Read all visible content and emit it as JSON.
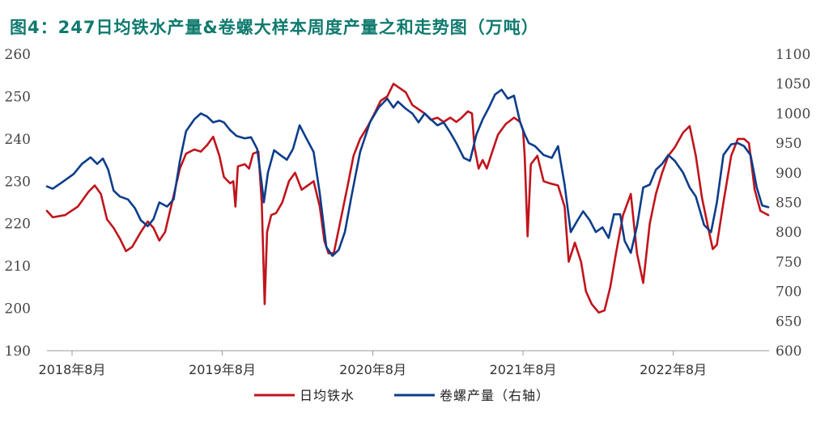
{
  "title": "图4：247日均铁水产量&卷螺大样本周度产量之和走势图（万吨）",
  "colors": {
    "series1": "#c0141c",
    "series2": "#0c3d8a",
    "title": "#0f7a6e",
    "axis": "#999999"
  },
  "chart_data": {
    "type": "line",
    "title": "图4：247日均铁水产量&卷螺大样本周度产量之和走势图（万吨）",
    "x_range": [
      "2018-06-01",
      "2023-03-22"
    ],
    "x_tick_labels": [
      {
        "date": "2018-08-01",
        "label": "2018年8月"
      },
      {
        "date": "2019-08-01",
        "label": "2019年8月"
      },
      {
        "date": "2020-08-01",
        "label": "2020年8月"
      },
      {
        "date": "2021-08-01",
        "label": "2021年8月"
      },
      {
        "date": "2022-08-01",
        "label": "2022年8月"
      }
    ],
    "y_left": {
      "ylim": [
        190,
        260
      ],
      "ticks": [
        190,
        200,
        210,
        220,
        230,
        240,
        250,
        260
      ]
    },
    "y_right": {
      "ylim": [
        600,
        1100
      ],
      "ticks": [
        600,
        650,
        700,
        750,
        800,
        850,
        900,
        950,
        1000,
        1050,
        1100
      ]
    },
    "grid": false,
    "legend_position": "bottom",
    "series": [
      {
        "name": "日均铁水",
        "axis": "left",
        "color": "#c0141c",
        "points": [
          [
            "2018-06-01",
            223
          ],
          [
            "2018-06-15",
            221.5
          ],
          [
            "2018-07-15",
            222
          ],
          [
            "2018-08-15",
            224
          ],
          [
            "2018-09-10",
            227.5
          ],
          [
            "2018-09-25",
            229
          ],
          [
            "2018-10-10",
            227
          ],
          [
            "2018-10-25",
            221
          ],
          [
            "2018-11-10",
            219
          ],
          [
            "2018-11-25",
            216.5
          ],
          [
            "2018-12-10",
            213.5
          ],
          [
            "2018-12-25",
            214.5
          ],
          [
            "2019-01-15",
            218
          ],
          [
            "2019-02-01",
            220.5
          ],
          [
            "2019-02-15",
            219
          ],
          [
            "2019-03-01",
            216
          ],
          [
            "2019-03-15",
            218
          ],
          [
            "2019-04-01",
            225
          ],
          [
            "2019-04-20",
            233
          ],
          [
            "2019-05-05",
            236.5
          ],
          [
            "2019-05-25",
            237.5
          ],
          [
            "2019-06-10",
            237
          ],
          [
            "2019-06-25",
            238.5
          ],
          [
            "2019-07-10",
            240.5
          ],
          [
            "2019-07-25",
            236
          ],
          [
            "2019-08-05",
            231
          ],
          [
            "2019-08-20",
            229.5
          ],
          [
            "2019-08-28",
            230
          ],
          [
            "2019-09-02",
            224
          ],
          [
            "2019-09-08",
            233.5
          ],
          [
            "2019-09-25",
            234
          ],
          [
            "2019-10-05",
            233
          ],
          [
            "2019-10-15",
            236.5
          ],
          [
            "2019-10-28",
            237
          ],
          [
            "2019-11-05",
            225
          ],
          [
            "2019-11-12",
            201
          ],
          [
            "2019-11-18",
            218
          ],
          [
            "2019-11-28",
            222
          ],
          [
            "2019-12-10",
            222.5
          ],
          [
            "2019-12-25",
            225
          ],
          [
            "2020-01-10",
            230
          ],
          [
            "2020-01-25",
            232
          ],
          [
            "2020-02-10",
            228
          ],
          [
            "2020-02-25",
            229
          ],
          [
            "2020-03-10",
            230
          ],
          [
            "2020-03-25",
            224
          ],
          [
            "2020-04-05",
            216
          ],
          [
            "2020-04-15",
            213
          ],
          [
            "2020-04-28",
            213
          ],
          [
            "2020-05-15",
            221
          ],
          [
            "2020-06-01",
            229
          ],
          [
            "2020-06-15",
            236
          ],
          [
            "2020-07-01",
            240
          ],
          [
            "2020-07-20",
            243
          ],
          [
            "2020-08-05",
            246
          ],
          [
            "2020-08-20",
            249
          ],
          [
            "2020-09-05",
            250
          ],
          [
            "2020-09-20",
            253
          ],
          [
            "2020-10-05",
            252
          ],
          [
            "2020-10-20",
            251
          ],
          [
            "2020-11-05",
            248
          ],
          [
            "2020-11-20",
            247
          ],
          [
            "2020-12-05",
            246
          ],
          [
            "2020-12-20",
            244.5
          ],
          [
            "2021-01-05",
            245
          ],
          [
            "2021-01-20",
            244
          ],
          [
            "2021-02-05",
            245
          ],
          [
            "2021-02-20",
            244
          ],
          [
            "2021-03-05",
            245
          ],
          [
            "2021-03-20",
            246.5
          ],
          [
            "2021-03-30",
            246
          ],
          [
            "2021-04-05",
            238
          ],
          [
            "2021-04-15",
            233
          ],
          [
            "2021-04-25",
            235
          ],
          [
            "2021-05-05",
            233
          ],
          [
            "2021-05-15",
            236
          ],
          [
            "2021-06-01",
            241
          ],
          [
            "2021-06-20",
            243.5
          ],
          [
            "2021-07-10",
            245
          ],
          [
            "2021-07-25",
            244
          ],
          [
            "2021-08-01",
            242
          ],
          [
            "2021-08-05",
            236
          ],
          [
            "2021-08-12",
            217
          ],
          [
            "2021-08-20",
            234
          ],
          [
            "2021-09-05",
            236
          ],
          [
            "2021-09-20",
            230
          ],
          [
            "2021-10-05",
            229.5
          ],
          [
            "2021-10-25",
            229
          ],
          [
            "2021-11-10",
            224
          ],
          [
            "2021-11-20",
            211
          ],
          [
            "2021-12-05",
            215.5
          ],
          [
            "2021-12-20",
            211
          ],
          [
            "2022-01-01",
            204
          ],
          [
            "2022-01-15",
            201
          ],
          [
            "2022-02-01",
            199
          ],
          [
            "2022-02-15",
            199.5
          ],
          [
            "2022-03-01",
            205
          ],
          [
            "2022-03-15",
            213
          ],
          [
            "2022-04-01",
            222
          ],
          [
            "2022-04-20",
            227
          ],
          [
            "2022-05-05",
            213
          ],
          [
            "2022-05-20",
            206
          ],
          [
            "2022-06-05",
            220
          ],
          [
            "2022-06-20",
            227
          ],
          [
            "2022-07-05",
            232
          ],
          [
            "2022-07-20",
            236
          ],
          [
            "2022-08-05",
            238
          ],
          [
            "2022-08-25",
            241.5
          ],
          [
            "2022-09-10",
            243
          ],
          [
            "2022-09-25",
            236
          ],
          [
            "2022-10-10",
            226
          ],
          [
            "2022-10-25",
            219
          ],
          [
            "2022-11-05",
            214
          ],
          [
            "2022-11-15",
            215
          ],
          [
            "2022-12-01",
            225
          ],
          [
            "2022-12-20",
            236
          ],
          [
            "2023-01-05",
            240
          ],
          [
            "2023-01-20",
            240
          ],
          [
            "2023-02-01",
            239
          ],
          [
            "2023-02-15",
            228
          ],
          [
            "2023-03-01",
            223
          ],
          [
            "2023-03-20",
            222
          ]
        ]
      },
      {
        "name": "卷螺产量（右轴）",
        "axis": "right",
        "color": "#0c3d8a",
        "points": [
          [
            "2018-06-01",
            877
          ],
          [
            "2018-06-15",
            873
          ],
          [
            "2018-07-10",
            885
          ],
          [
            "2018-08-05",
            898
          ],
          [
            "2018-08-25",
            915
          ],
          [
            "2018-09-15",
            926
          ],
          [
            "2018-10-01",
            915
          ],
          [
            "2018-10-15",
            924
          ],
          [
            "2018-10-28",
            905
          ],
          [
            "2018-11-10",
            870
          ],
          [
            "2018-11-25",
            860
          ],
          [
            "2018-12-15",
            855
          ],
          [
            "2019-01-01",
            840
          ],
          [
            "2019-01-15",
            820
          ],
          [
            "2019-02-01",
            810
          ],
          [
            "2019-02-15",
            822
          ],
          [
            "2019-03-01",
            850
          ],
          [
            "2019-03-20",
            843
          ],
          [
            "2019-04-05",
            855
          ],
          [
            "2019-04-20",
            920
          ],
          [
            "2019-05-05",
            970
          ],
          [
            "2019-05-25",
            990
          ],
          [
            "2019-06-10",
            1000
          ],
          [
            "2019-06-25",
            995
          ],
          [
            "2019-07-10",
            985
          ],
          [
            "2019-07-25",
            988
          ],
          [
            "2019-08-05",
            985
          ],
          [
            "2019-08-20",
            972
          ],
          [
            "2019-09-05",
            962
          ],
          [
            "2019-09-25",
            958
          ],
          [
            "2019-10-10",
            960
          ],
          [
            "2019-10-25",
            940
          ],
          [
            "2019-11-05",
            882
          ],
          [
            "2019-11-10",
            850
          ],
          [
            "2019-11-20",
            900
          ],
          [
            "2019-12-05",
            938
          ],
          [
            "2019-12-20",
            930
          ],
          [
            "2020-01-05",
            922
          ],
          [
            "2020-01-20",
            940
          ],
          [
            "2020-02-05",
            980
          ],
          [
            "2020-02-20",
            960
          ],
          [
            "2020-03-10",
            935
          ],
          [
            "2020-03-25",
            865
          ],
          [
            "2020-04-10",
            775
          ],
          [
            "2020-04-25",
            760
          ],
          [
            "2020-05-10",
            770
          ],
          [
            "2020-05-25",
            800
          ],
          [
            "2020-06-10",
            860
          ],
          [
            "2020-07-01",
            935
          ],
          [
            "2020-07-25",
            985
          ],
          [
            "2020-08-15",
            1010
          ],
          [
            "2020-09-05",
            1025
          ],
          [
            "2020-09-20",
            1010
          ],
          [
            "2020-10-01",
            1020
          ],
          [
            "2020-10-20",
            1008
          ],
          [
            "2020-11-05",
            1000
          ],
          [
            "2020-11-20",
            985
          ],
          [
            "2020-12-05",
            1000
          ],
          [
            "2020-12-20",
            990
          ],
          [
            "2021-01-05",
            980
          ],
          [
            "2021-01-20",
            985
          ],
          [
            "2021-02-05",
            968
          ],
          [
            "2021-02-20",
            950
          ],
          [
            "2021-03-10",
            925
          ],
          [
            "2021-03-25",
            920
          ],
          [
            "2021-04-10",
            965
          ],
          [
            "2021-04-25",
            990
          ],
          [
            "2021-05-10",
            1010
          ],
          [
            "2021-05-25",
            1032
          ],
          [
            "2021-06-10",
            1040
          ],
          [
            "2021-06-25",
            1025
          ],
          [
            "2021-07-10",
            1030
          ],
          [
            "2021-07-25",
            985
          ],
          [
            "2021-08-05",
            965
          ],
          [
            "2021-08-15",
            950
          ],
          [
            "2021-08-30",
            945
          ],
          [
            "2021-09-20",
            930
          ],
          [
            "2021-10-10",
            925
          ],
          [
            "2021-10-25",
            945
          ],
          [
            "2021-11-10",
            880
          ],
          [
            "2021-11-25",
            800
          ],
          [
            "2021-12-10",
            818
          ],
          [
            "2021-12-25",
            835
          ],
          [
            "2022-01-10",
            820
          ],
          [
            "2022-01-25",
            800
          ],
          [
            "2022-02-10",
            808
          ],
          [
            "2022-02-25",
            790
          ],
          [
            "2022-03-10",
            830
          ],
          [
            "2022-03-25",
            830
          ],
          [
            "2022-04-05",
            785
          ],
          [
            "2022-04-20",
            765
          ],
          [
            "2022-05-05",
            810
          ],
          [
            "2022-05-20",
            875
          ],
          [
            "2022-06-05",
            880
          ],
          [
            "2022-06-20",
            905
          ],
          [
            "2022-07-05",
            915
          ],
          [
            "2022-07-20",
            930
          ],
          [
            "2022-08-05",
            920
          ],
          [
            "2022-08-25",
            900
          ],
          [
            "2022-09-10",
            875
          ],
          [
            "2022-09-25",
            860
          ],
          [
            "2022-10-15",
            812
          ],
          [
            "2022-11-01",
            800
          ],
          [
            "2022-11-15",
            850
          ],
          [
            "2022-12-01",
            930
          ],
          [
            "2022-12-20",
            948
          ],
          [
            "2023-01-05",
            950
          ],
          [
            "2023-01-20",
            945
          ],
          [
            "2023-02-05",
            930
          ],
          [
            "2023-02-20",
            875
          ],
          [
            "2023-03-05",
            845
          ],
          [
            "2023-03-20",
            842
          ]
        ]
      }
    ]
  }
}
